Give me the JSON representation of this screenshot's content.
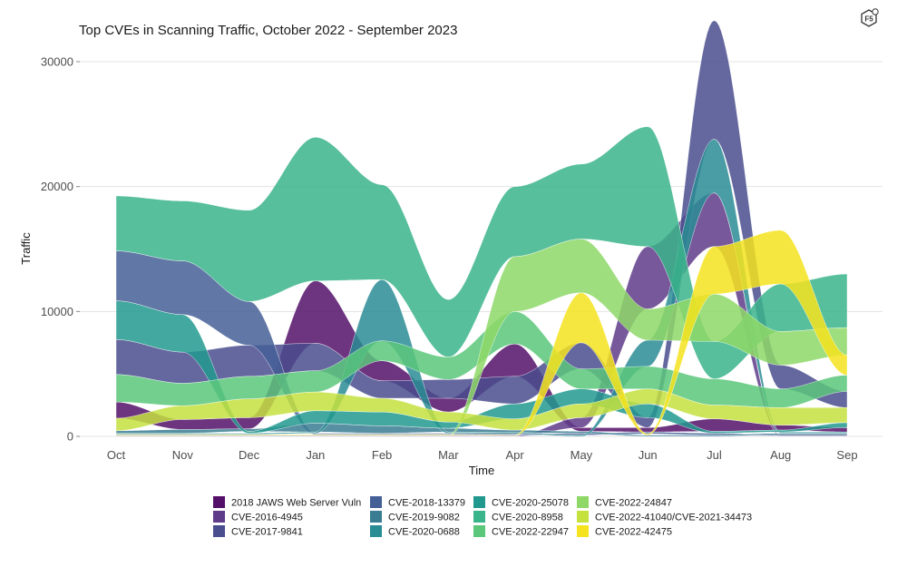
{
  "chart_data": {
    "type": "area",
    "subtype": "bump-streamgraph",
    "title": "Top CVEs in Scanning Traffic, October 2022 - September 2023",
    "xlabel": "Time",
    "ylabel": "Traffic",
    "categories": [
      "Oct",
      "Nov",
      "Dec",
      "Jan",
      "Feb",
      "Mar",
      "Apr",
      "May",
      "Jun",
      "Jul",
      "Aug",
      "Sep"
    ],
    "yticks": [
      0,
      10000,
      20000,
      30000
    ],
    "ytick_labels": [
      "0",
      "10000",
      "20000",
      "30000"
    ],
    "ylim": [
      0,
      30000
    ],
    "grid": true,
    "legend_position": "bottom",
    "series": [
      {
        "name": "2018 JAWS Web Server Vuln",
        "color": "#541068",
        "values": [
          1300,
          800,
          900,
          5000,
          1600,
          1100,
          2600,
          300,
          350,
          1000,
          400,
          350
        ]
      },
      {
        "name": "CVE-2016-4945",
        "color": "#5f3c8a",
        "values": [
          50,
          50,
          50,
          50,
          50,
          50,
          50,
          800,
          5000,
          4300,
          50,
          50
        ]
      },
      {
        "name": "CVE-2017-9841",
        "color": "#4a4e8e",
        "values": [
          2800,
          2500,
          2500,
          2200,
          1400,
          1500,
          2200,
          2100,
          800,
          9500,
          1900,
          1300
        ]
      },
      {
        "name": "CVE-2018-13379",
        "color": "#455f97",
        "values": [
          4000,
          4300,
          3500,
          100,
          100,
          100,
          100,
          150,
          150,
          150,
          100,
          100
        ]
      },
      {
        "name": "CVE-2019-9082",
        "color": "#3a7d92",
        "values": [
          200,
          300,
          200,
          700,
          600,
          300,
          200,
          150,
          100,
          100,
          100,
          100
        ]
      },
      {
        "name": "CVE-2020-0688",
        "color": "#2a8c94",
        "values": [
          100,
          100,
          100,
          100,
          4900,
          100,
          100,
          100,
          2100,
          4300,
          100,
          100
        ]
      },
      {
        "name": "CVE-2020-25078",
        "color": "#22998e",
        "values": [
          3100,
          3000,
          150,
          1000,
          1100,
          500,
          1200,
          1200,
          1100,
          150,
          150,
          400
        ]
      },
      {
        "name": "CVE-2020-8958",
        "color": "#3ab48a",
        "values": [
          4400,
          4800,
          7300,
          11500,
          7600,
          4600,
          5600,
          6000,
          9600,
          3000,
          3800,
          4300
        ]
      },
      {
        "name": "CVE-2022-22947",
        "color": "#5ac77a",
        "values": [
          2200,
          1800,
          1800,
          1700,
          1600,
          1800,
          2600,
          1600,
          1800,
          2100,
          1500,
          1300
        ]
      },
      {
        "name": "CVE-2022-24847",
        "color": "#8ed867",
        "values": [
          50,
          50,
          50,
          50,
          50,
          50,
          4400,
          4300,
          2500,
          3800,
          2700,
          2200
        ]
      },
      {
        "name": "CVE-2022-41040/CVE-2021-34473",
        "color": "#c4e13e",
        "values": [
          1000,
          1100,
          1500,
          1500,
          1100,
          800,
          900,
          1100,
          1200,
          1100,
          1400,
          1200
        ]
      },
      {
        "name": "CVE-2022-42475",
        "color": "#f5e31f",
        "values": [
          50,
          50,
          50,
          50,
          50,
          50,
          50,
          4000,
          100,
          3800,
          4300,
          1600
        ]
      }
    ]
  },
  "logo": {
    "icon": "f5-hexagon-icon",
    "label": "F5"
  }
}
